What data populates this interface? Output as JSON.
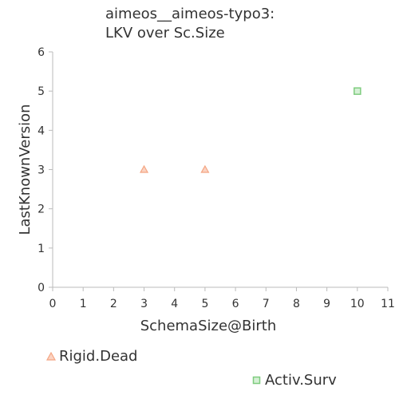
{
  "title_line1": "aimeos__aimeos-typo3:",
  "title_line2": "LKV over Sc.Size",
  "chart_data": {
    "type": "scatter",
    "title": "aimeos__aimeos-typo3: LKV over Sc.Size",
    "xlabel": "SchemaSize@Birth",
    "ylabel": "LastKnownVersion",
    "xlim": [
      0,
      11
    ],
    "ylim": [
      0,
      6
    ],
    "xticks": [
      "0",
      "1",
      "2",
      "3",
      "4",
      "5",
      "6",
      "7",
      "8",
      "9",
      "10",
      "11"
    ],
    "yticks": [
      "0",
      "1",
      "2",
      "3",
      "4",
      "5",
      "6"
    ],
    "grid": false,
    "series": [
      {
        "name": "Rigid.Dead",
        "marker": "triangle",
        "color": "#f4a582",
        "points": [
          {
            "x": 3,
            "y": 3
          },
          {
            "x": 5,
            "y": 3
          }
        ]
      },
      {
        "name": "Activ.Surv",
        "marker": "square",
        "color": "#7fcc7f",
        "points": [
          {
            "x": 10,
            "y": 5
          }
        ]
      }
    ]
  }
}
